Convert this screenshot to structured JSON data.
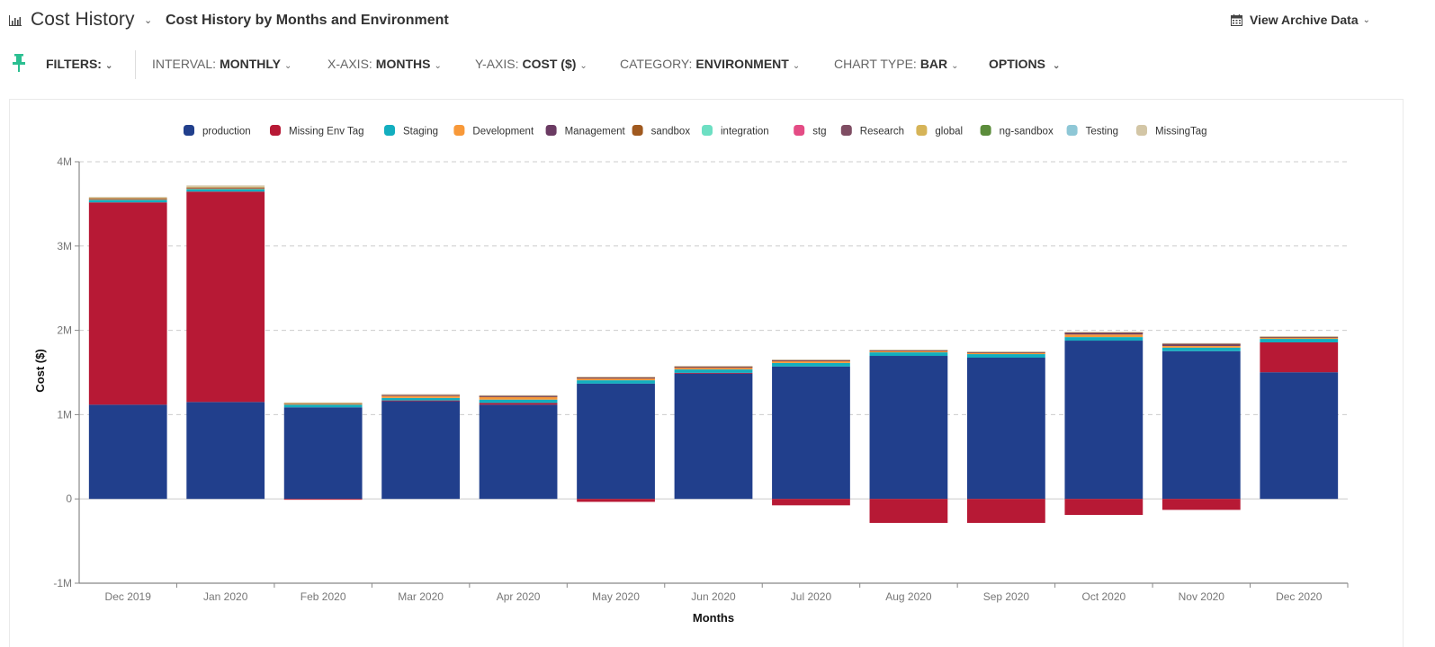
{
  "header": {
    "title": "Cost History",
    "subtitle": "Cost History by Months and Environment",
    "archive_label": "View Archive Data",
    "chevron": "⌄"
  },
  "toolbar": {
    "filters_label": "FILTERS:",
    "interval_label": "INTERVAL:",
    "interval_value": "MONTHLY",
    "xaxis_label": "X-AXIS:",
    "xaxis_value": "MONTHS",
    "yaxis_label": "Y-AXIS:",
    "yaxis_value": "COST ($)",
    "category_label": "CATEGORY:",
    "category_value": "ENVIRONMENT",
    "charttype_label": "CHART TYPE:",
    "charttype_value": "BAR",
    "options_label": "OPTIONS"
  },
  "colors": {
    "pin": "#2bbf91",
    "grid": "#cccccc",
    "axis": "#888888"
  },
  "chart_data": {
    "type": "bar",
    "stacked": true,
    "title": "",
    "xlabel": "Months",
    "ylabel": "Cost ($)",
    "ylim": [
      -1000000,
      4000000
    ],
    "yticks": [
      -1000000,
      0,
      1000000,
      2000000,
      3000000,
      4000000
    ],
    "ytick_labels": [
      "-1M",
      "0",
      "1M",
      "2M",
      "3M",
      "4M"
    ],
    "grid": true,
    "legend_position": "top-center",
    "categories": [
      "Dec 2019",
      "Jan 2020",
      "Feb 2020",
      "Mar 2020",
      "Apr 2020",
      "May 2020",
      "Jun 2020",
      "Jul 2020",
      "Aug 2020",
      "Sep 2020",
      "Oct 2020",
      "Nov 2020",
      "Dec 2020"
    ],
    "series": [
      {
        "name": "production",
        "color": "#213f8c",
        "values": [
          1118000,
          1150000,
          1087000,
          1160000,
          1118000,
          1368000,
          1488000,
          1571000,
          1697000,
          1676000,
          1878000,
          1753000,
          1503000
        ]
      },
      {
        "name": "Missing Env Tag",
        "color": "#b71935",
        "values": [
          2400000,
          2496000,
          -10000,
          8000,
          20000,
          -35000,
          8000,
          -76000,
          -285000,
          -285000,
          -190000,
          -130000,
          354000
        ]
      },
      {
        "name": "Staging",
        "color": "#13aebf",
        "values": [
          30000,
          30000,
          31000,
          30000,
          40000,
          40000,
          40000,
          42000,
          42000,
          42000,
          42000,
          42000,
          42000
        ]
      },
      {
        "name": "Development",
        "color": "#f89939",
        "values": [
          15000,
          15000,
          12000,
          24000,
          30000,
          20000,
          20000,
          20000,
          20000,
          20000,
          31000,
          20000,
          20000
        ]
      },
      {
        "name": "Management",
        "color": "#6b3b63",
        "values": [
          3000,
          3000,
          3000,
          8000,
          8000,
          8000,
          8000,
          8000,
          3000,
          3000,
          20000,
          20000,
          3000
        ]
      },
      {
        "name": "sandbox",
        "color": "#a0591f",
        "values": [
          0,
          0,
          0,
          0,
          4000,
          3000,
          3000,
          3000,
          0,
          0,
          3000,
          3000,
          0
        ]
      },
      {
        "name": "integration",
        "color": "#6ddfc3",
        "values": [
          0,
          0,
          0,
          0,
          0,
          0,
          0,
          0,
          0,
          0,
          0,
          0,
          0
        ]
      },
      {
        "name": "stg",
        "color": "#e44c85",
        "values": [
          0,
          0,
          0,
          0,
          0,
          0,
          0,
          0,
          0,
          0,
          0,
          0,
          0
        ]
      },
      {
        "name": "Research",
        "color": "#7f4d63",
        "values": [
          0,
          0,
          0,
          3000,
          3000,
          3000,
          3000,
          3000,
          0,
          0,
          3000,
          3000,
          0
        ]
      },
      {
        "name": "global",
        "color": "#d6b458",
        "values": [
          8000,
          10000,
          4000,
          0,
          0,
          0,
          0,
          0,
          0,
          0,
          0,
          0,
          0
        ]
      },
      {
        "name": "ng-sandbox",
        "color": "#5b8c3b",
        "values": [
          0,
          0,
          0,
          0,
          0,
          0,
          0,
          0,
          0,
          0,
          0,
          0,
          0
        ]
      },
      {
        "name": "Testing",
        "color": "#8ec7d6",
        "values": [
          0,
          0,
          0,
          0,
          0,
          0,
          0,
          0,
          0,
          0,
          0,
          0,
          0
        ]
      },
      {
        "name": "MissingTag",
        "color": "#d3c6a6",
        "values": [
          8000,
          15000,
          8000,
          10000,
          8000,
          8000,
          8000,
          8000,
          10000,
          10000,
          5000,
          8000,
          10000
        ]
      }
    ]
  }
}
